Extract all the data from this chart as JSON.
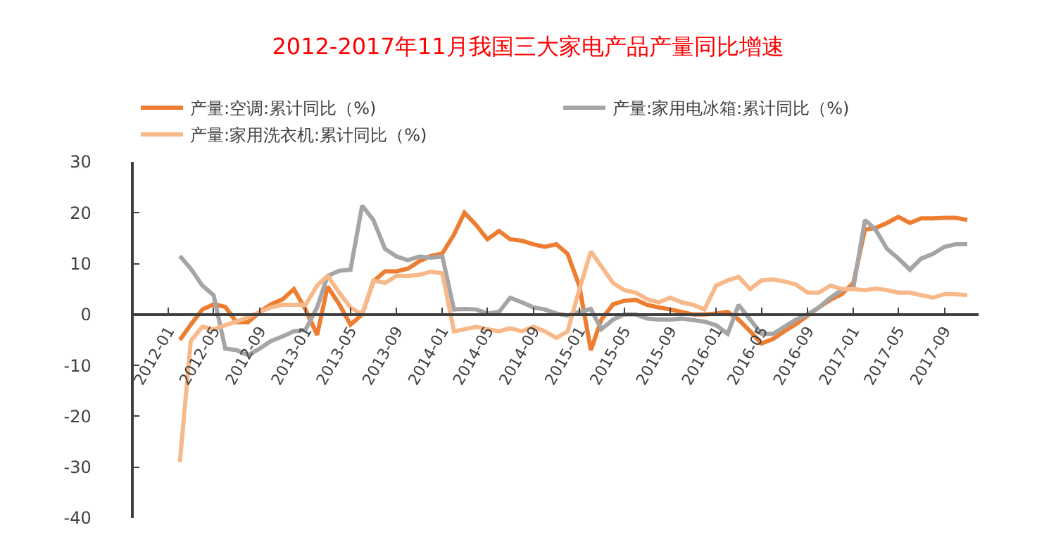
{
  "chart_data": {
    "type": "line",
    "title": "2012-2017年11月我国三大家电产品产量同比增速",
    "x": [
      "2012-02",
      "2012-03",
      "2012-04",
      "2012-05",
      "2012-06",
      "2012-07",
      "2012-08",
      "2012-09",
      "2012-10",
      "2012-11",
      "2012-12",
      "2013-01",
      "2013-02",
      "2013-03",
      "2013-04",
      "2013-05",
      "2013-06",
      "2013-07",
      "2013-08",
      "2013-09",
      "2013-10",
      "2013-11",
      "2013-12",
      "2014-01",
      "2014-02",
      "2014-03",
      "2014-04",
      "2014-05",
      "2014-06",
      "2014-07",
      "2014-08",
      "2014-09",
      "2014-10",
      "2014-11",
      "2014-12",
      "2015-01",
      "2015-02",
      "2015-03",
      "2015-04",
      "2015-05",
      "2015-06",
      "2015-07",
      "2015-08",
      "2015-09",
      "2015-10",
      "2015-11",
      "2015-12",
      "2016-01",
      "2016-02",
      "2016-03",
      "2016-04",
      "2016-05",
      "2016-06",
      "2016-07",
      "2016-08",
      "2016-09",
      "2016-10",
      "2016-11",
      "2016-12",
      "2017-01",
      "2017-02",
      "2017-03",
      "2017-04",
      "2017-05",
      "2017-06",
      "2017-07",
      "2017-08",
      "2017-09",
      "2017-10",
      "2017-11"
    ],
    "series": [
      {
        "name": "产量:空调:累计同比（%)",
        "color": "#ed7d31",
        "values": [
          -5,
          -2,
          1,
          2,
          1.5,
          -1.5,
          -1.5,
          0.5,
          2,
          3,
          5,
          1,
          -4,
          5.5,
          2,
          -2,
          0,
          6.5,
          8.5,
          8.5,
          9,
          10.5,
          11.5,
          12,
          15.7,
          20,
          17.6,
          14.8,
          16.4,
          14.8,
          14.5,
          13.8,
          13.3,
          13.8,
          11.9,
          5.7,
          -7,
          -1,
          2,
          2.7,
          2.9,
          1.9,
          1.4,
          1,
          0.5,
          0,
          0,
          0.2,
          0.5,
          -1,
          -3.3,
          -5.7,
          -4.8,
          -3.3,
          -1.9,
          -0.2,
          1.4,
          2.9,
          4,
          6.2,
          16.7,
          17,
          18,
          19.2,
          18,
          18.9,
          18.9,
          19,
          19,
          18.6
        ]
      },
      {
        "name": "产量:家用电冰箱:累计同比（%)",
        "color": "#a5a5a5",
        "values": [
          11.5,
          9,
          5.7,
          3.8,
          -6.7,
          -7,
          -8,
          -6.7,
          -5.2,
          -4.3,
          -3.3,
          -3,
          1.4,
          7.6,
          8.6,
          8.8,
          21.4,
          18.6,
          12.9,
          11.4,
          10.7,
          11.4,
          11.2,
          11.4,
          1,
          1.1,
          1,
          0.2,
          0.5,
          3.3,
          2.4,
          1.4,
          1,
          0.2,
          -0.2,
          0.5,
          1.1,
          -2.9,
          -1,
          0,
          0,
          -0.8,
          -1,
          -1,
          -0.8,
          -1.1,
          -1.4,
          -2.1,
          -3.8,
          1.9,
          -1,
          -3.8,
          -3.8,
          -2.4,
          -1,
          0,
          1.4,
          3.3,
          4.8,
          5.2,
          18.6,
          16.7,
          12.9,
          11,
          8.8,
          11,
          11.9,
          13.3,
          13.8,
          13.8
        ]
      },
      {
        "name": "产量:家用洗衣机:累计同比（%)",
        "color": "#f8b98a",
        "values": [
          -29,
          -5.2,
          -2.4,
          -2.9,
          -2.1,
          -1.4,
          -0.5,
          0.5,
          1.4,
          1.9,
          1.9,
          1.9,
          5.7,
          7.6,
          4.3,
          1.4,
          0,
          6.7,
          6.2,
          7.6,
          7.6,
          7.8,
          8.4,
          8.1,
          -3.3,
          -2.9,
          -2.4,
          -2.9,
          -3.3,
          -2.7,
          -3.3,
          -2.4,
          -3.3,
          -4.6,
          -3.3,
          4.8,
          12.4,
          9.5,
          6.2,
          4.8,
          4.3,
          3,
          2.4,
          3.3,
          2.4,
          1.9,
          1,
          5.7,
          6.7,
          7.4,
          5,
          6.7,
          6.9,
          6.5,
          5.9,
          4.3,
          4.3,
          5.7,
          5,
          5,
          4.8,
          5.1,
          4.8,
          4.3,
          4.3,
          3.8,
          3.3,
          4,
          4,
          3.8
        ]
      }
    ],
    "xlim": [
      "2011-10",
      "2017-12"
    ],
    "xticks": [
      "2012-01",
      "2012-05",
      "2012-09",
      "2013-01",
      "2013-05",
      "2013-09",
      "2014-01",
      "2014-05",
      "2014-09",
      "2015-01",
      "2015-05",
      "2015-09",
      "2016-01",
      "2016-05",
      "2016-09",
      "2017-01",
      "2017-05",
      "2017-09"
    ],
    "ylim": [
      -40,
      30
    ],
    "yticks": [
      -40,
      -30,
      -20,
      -10,
      0,
      10,
      20,
      30
    ],
    "grid": false,
    "legend": "top",
    "marker": "none",
    "line_style": "solid"
  }
}
